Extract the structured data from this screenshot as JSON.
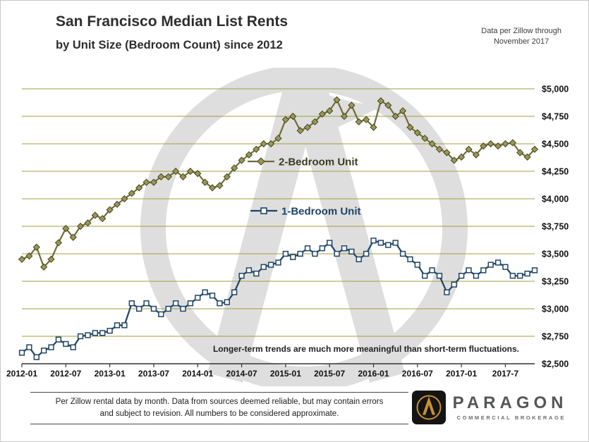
{
  "header": {
    "title": "San Francisco Median List Rents",
    "subtitle": "by Unit Size (Bedroom Count) since 2012",
    "data_note_line1": "Data per Zillow through",
    "data_note_line2": "November 2017"
  },
  "chart_data": {
    "type": "line",
    "title": "San Francisco Median List Rents by Unit Size (Bedroom Count) since 2012",
    "ylim": [
      2500,
      5000
    ],
    "y_step": 250,
    "gridline_color": "#a09e40",
    "y_tick_labels": [
      "$2,500",
      "$2,750",
      "$3,000",
      "$3,250",
      "$3,500",
      "$3,750",
      "$4,000",
      "$4,250",
      "$4,500",
      "$4,750",
      "$5,000"
    ],
    "x_tick_labels": [
      "2012-01",
      "2012-07",
      "2013-01",
      "2013-07",
      "2014-01",
      "2014-07",
      "2015-01",
      "2015-07",
      "2016-01",
      "2016-07",
      "2017-01",
      "2017-7"
    ],
    "months": [
      "2012-01",
      "2012-02",
      "2012-03",
      "2012-04",
      "2012-05",
      "2012-06",
      "2012-07",
      "2012-08",
      "2012-09",
      "2012-10",
      "2012-11",
      "2012-12",
      "2013-01",
      "2013-02",
      "2013-03",
      "2013-04",
      "2013-05",
      "2013-06",
      "2013-07",
      "2013-08",
      "2013-09",
      "2013-10",
      "2013-11",
      "2013-12",
      "2014-01",
      "2014-02",
      "2014-03",
      "2014-04",
      "2014-05",
      "2014-06",
      "2014-07",
      "2014-08",
      "2014-09",
      "2014-10",
      "2014-11",
      "2014-12",
      "2015-01",
      "2015-02",
      "2015-03",
      "2015-04",
      "2015-05",
      "2015-06",
      "2015-07",
      "2015-08",
      "2015-09",
      "2015-10",
      "2015-11",
      "2015-12",
      "2016-01",
      "2016-02",
      "2016-03",
      "2016-04",
      "2016-05",
      "2016-06",
      "2016-07",
      "2016-08",
      "2016-09",
      "2016-10",
      "2016-11",
      "2016-12",
      "2017-01",
      "2017-02",
      "2017-03",
      "2017-04",
      "2017-05",
      "2017-06",
      "2017-07",
      "2017-08",
      "2017-09",
      "2017-10",
      "2017-11"
    ],
    "series": [
      {
        "name": "2-Bedroom Unit",
        "color": "#6f6d35",
        "marker": "diamond",
        "marker_fill": "#9b9758",
        "marker_stroke": "#45441d",
        "label_color": "#3b3b22",
        "values": [
          3450,
          3480,
          3560,
          3380,
          3450,
          3600,
          3730,
          3650,
          3750,
          3780,
          3850,
          3820,
          3900,
          3950,
          4000,
          4050,
          4100,
          4150,
          4150,
          4200,
          4200,
          4250,
          4200,
          4250,
          4230,
          4150,
          4100,
          4120,
          4200,
          4280,
          4350,
          4400,
          4450,
          4500,
          4500,
          4550,
          4720,
          4750,
          4620,
          4650,
          4700,
          4770,
          4800,
          4900,
          4750,
          4850,
          4700,
          4720,
          4650,
          4890,
          4850,
          4750,
          4800,
          4650,
          4600,
          4550,
          4500,
          4450,
          4420,
          4350,
          4380,
          4450,
          4400,
          4480,
          4500,
          4480,
          4500,
          4510,
          4420,
          4380,
          4450
        ]
      },
      {
        "name": "1-Bedroom Unit",
        "color": "#1d4466",
        "marker": "square",
        "marker_fill": "#ffffff",
        "marker_stroke": "#1d4466",
        "label_color": "#1d4466",
        "values": [
          2600,
          2650,
          2560,
          2620,
          2650,
          2720,
          2680,
          2650,
          2750,
          2760,
          2780,
          2780,
          2800,
          2850,
          2850,
          3050,
          3000,
          3050,
          3000,
          2950,
          3000,
          3050,
          3000,
          3050,
          3100,
          3150,
          3120,
          3050,
          3060,
          3150,
          3300,
          3350,
          3320,
          3380,
          3400,
          3420,
          3500,
          3470,
          3500,
          3550,
          3500,
          3550,
          3600,
          3500,
          3550,
          3520,
          3450,
          3500,
          3620,
          3600,
          3580,
          3600,
          3500,
          3450,
          3400,
          3300,
          3350,
          3300,
          3150,
          3220,
          3300,
          3350,
          3300,
          3350,
          3400,
          3420,
          3380,
          3300,
          3300,
          3320,
          3350
        ]
      }
    ],
    "annotation": "Longer-term trends are much more meaningful than short-term fluctuations.",
    "legend_position": "inside-center"
  },
  "footer": {
    "disclaimer_line1": "Per Zillow rental data by month. Data from sources deemed reliable, but may contain errors",
    "disclaimer_line2": "and subject to revision. All numbers to be considered approximate.",
    "logo_name": "PARAGON",
    "logo_subtext": "COMMERCIAL BROKERAGE"
  }
}
